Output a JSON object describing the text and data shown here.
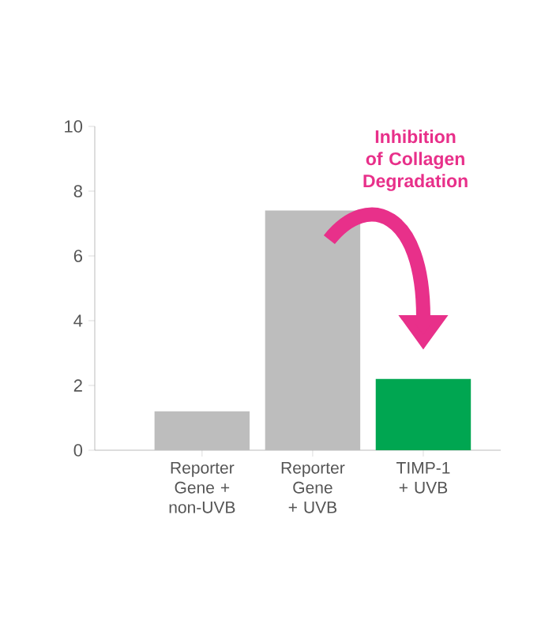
{
  "chart_data": {
    "type": "bar",
    "categories": [
      "Reporter Gene + non-UVB",
      "Reporter Gene + UVB",
      "TIMP-1 + UVB"
    ],
    "values": [
      1.2,
      7.4,
      2.2
    ],
    "colors": [
      "#bdbdbd",
      "#bdbdbd",
      "#00a651"
    ],
    "ylim": [
      0,
      10
    ],
    "yticks": [
      0,
      2,
      4,
      6,
      8,
      10
    ],
    "annotations": [
      "Inhibition of Collagen Degradation"
    ]
  }
}
